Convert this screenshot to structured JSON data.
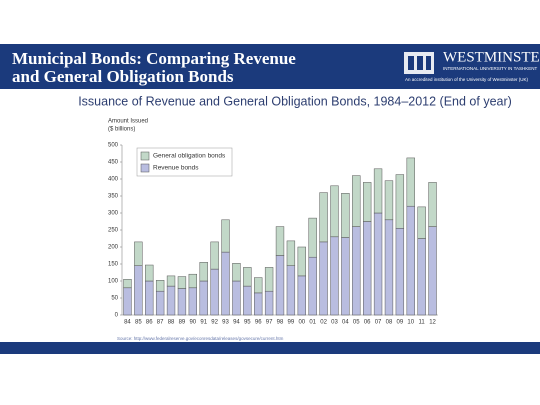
{
  "header": {
    "title": [
      "Municipal Bonds: Comparing Revenue",
      "and General Obligation Bonds"
    ],
    "logo": {
      "name": "WESTMINSTER",
      "subname": "INTERNATIONAL UNIVERSITY IN TASHKENT",
      "note": "An accredited institution of the University of Westminster (UK)"
    }
  },
  "chart_data": {
    "type": "stacked-bar",
    "title": "Issuance of Revenue and General Obligation Bonds, 1984–2012 (End of year)",
    "ylabel": [
      "Amount Issued",
      "($ billions)"
    ],
    "source": "Source: http://www.federalreserve.gov/econresdata/releases/govsecure/current.htm",
    "categories": [
      "84",
      "85",
      "86",
      "87",
      "88",
      "89",
      "90",
      "91",
      "92",
      "93",
      "94",
      "95",
      "96",
      "97",
      "98",
      "99",
      "00",
      "01",
      "02",
      "03",
      "04",
      "05",
      "06",
      "07",
      "08",
      "09",
      "10",
      "11",
      "12"
    ],
    "series": [
      {
        "name": "Revenue bonds",
        "color": "#b9bde0",
        "values": [
          80,
          145,
          100,
          70,
          85,
          78,
          80,
          100,
          135,
          185,
          100,
          85,
          65,
          70,
          175,
          145,
          115,
          170,
          215,
          230,
          228,
          260,
          275,
          300,
          280,
          255,
          320,
          225,
          260
        ]
      },
      {
        "name": "General obligation bonds",
        "color": "#c2d8c8",
        "values": [
          25,
          70,
          47,
          32,
          30,
          35,
          40,
          55,
          80,
          95,
          52,
          55,
          45,
          70,
          85,
          73,
          85,
          115,
          145,
          150,
          130,
          150,
          115,
          130,
          115,
          158,
          142,
          93,
          130
        ]
      }
    ],
    "ylim": [
      0,
      500
    ],
    "yticks": [
      0,
      50,
      100,
      150,
      200,
      250,
      300,
      350,
      400,
      450,
      500
    ],
    "legend": "top-left"
  }
}
